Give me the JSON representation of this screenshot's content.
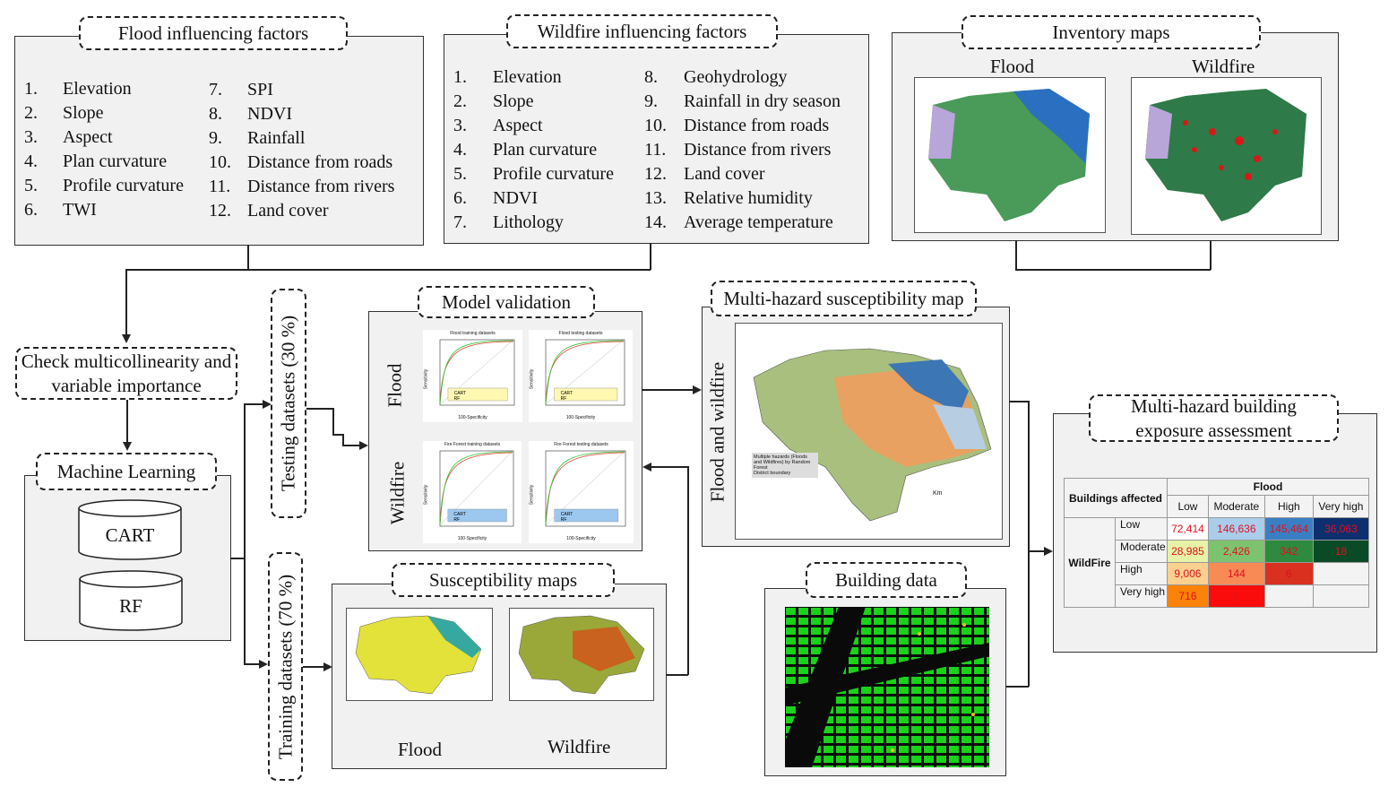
{
  "flood_factors": {
    "title": "Flood influencing factors",
    "col1": [
      [
        "1.",
        "Elevation"
      ],
      [
        "2.",
        "Slope"
      ],
      [
        "3.",
        "Aspect"
      ],
      [
        "4.",
        "Plan curvature"
      ],
      [
        "5.",
        "Profile curvature"
      ],
      [
        "6.",
        "TWI"
      ]
    ],
    "col2": [
      [
        "7.",
        "SPI"
      ],
      [
        "8.",
        "NDVI"
      ],
      [
        "9.",
        "Rainfall"
      ],
      [
        "10.",
        "Distance from roads"
      ],
      [
        "11.",
        "Distance from rivers"
      ],
      [
        "12.",
        "Land cover"
      ]
    ]
  },
  "wildfire_factors": {
    "title": "Wildfire influencing factors",
    "col1": [
      [
        "1.",
        "Elevation"
      ],
      [
        "2.",
        "Slope"
      ],
      [
        "3.",
        "Aspect"
      ],
      [
        "4.",
        "Plan curvature"
      ],
      [
        "5.",
        "Profile curvature"
      ],
      [
        "6.",
        "NDVI"
      ],
      [
        "7.",
        "Lithology"
      ]
    ],
    "col2": [
      [
        "8.",
        "Geohydrology"
      ],
      [
        "9.",
        "Rainfall in dry season"
      ],
      [
        "10.",
        "Distance from roads"
      ],
      [
        "11.",
        "Distance from rivers"
      ],
      [
        "12.",
        "Land cover"
      ],
      [
        "13.",
        "Relative humidity"
      ],
      [
        "14.",
        "Average temperature"
      ]
    ]
  },
  "inventory": {
    "title": "Inventory maps",
    "flood": "Flood",
    "wildfire": "Wildfire"
  },
  "check": {
    "title": "Check multicollinearity and variable importance"
  },
  "ml": {
    "title": "Machine Learning",
    "models": [
      "CART",
      "RF"
    ]
  },
  "testing": "Testing datasets (30 %)",
  "training": "Training datasets (70 %)",
  "validation": {
    "title": "Model validation",
    "row_flood": "Flood",
    "row_wildfire": "Wildfire",
    "charts": [
      "Flood training datasets",
      "Flood testing datasets",
      "Fire Forest training datasets",
      "Fire Forest testing datasets"
    ],
    "ylabel": "Sensitivity",
    "xlabel": "100-Specificity",
    "series": [
      "CART",
      "RF"
    ]
  },
  "susceptibility": {
    "title": "Susceptibility maps",
    "flood": "Flood",
    "wildfire": "Wildfire"
  },
  "multihazard": {
    "title": "Multi-hazard susceptibility map",
    "side": "Flood and wildfire",
    "legend": "Multiple hazards (Floods and Wildfires) by Random Forest",
    "boundary": "District boundary",
    "scale": "Km"
  },
  "building": {
    "title": "Building data"
  },
  "exposure": {
    "title": "Multi-hazard building exposure assessment",
    "corner": "Buildings affected",
    "col_group": "Flood",
    "row_group": "WildFire",
    "cols": [
      "Low",
      "Moderate",
      "High",
      "Very high"
    ],
    "rows": [
      {
        "label": "Low",
        "values": [
          "72,414",
          "146,636",
          "145,464",
          "36,063"
        ],
        "colors": [
          "#ffffff",
          "#a9cdea",
          "#3a7fc4",
          "#0d2f6e"
        ]
      },
      {
        "label": "Moderate",
        "values": [
          "28,985",
          "2,426",
          "342",
          "18"
        ],
        "colors": [
          "#e6f3a6",
          "#7dc26e",
          "#2d8a3f",
          "#0b4a26"
        ]
      },
      {
        "label": "High",
        "values": [
          "9,006",
          "144",
          "6",
          ""
        ],
        "colors": [
          "#fcd08f",
          "#f88a55",
          "#d9301f",
          "#f3f3f3"
        ]
      },
      {
        "label": "Very high",
        "values": [
          "716",
          "0",
          "",
          ""
        ],
        "colors": [
          "#f98208",
          "#fb0c0c",
          "#f3f3f3",
          "#f3f3f3"
        ]
      }
    ]
  }
}
